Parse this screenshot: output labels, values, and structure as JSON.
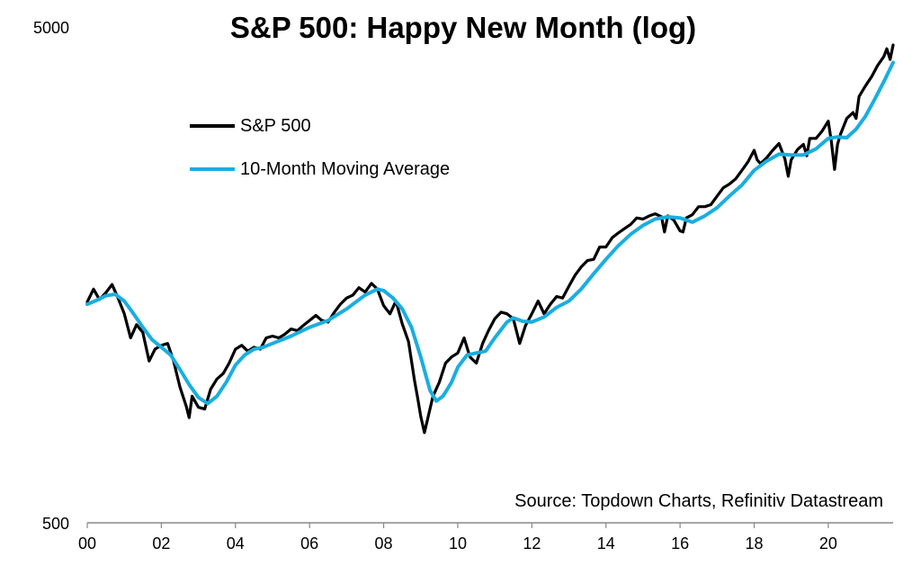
{
  "chart_data": {
    "type": "line",
    "title": "S&P 500: Happy New Month (log)",
    "source": "Source: Topdown Charts, Refinitiv Datastream",
    "xlabel": "",
    "ylabel": "",
    "yscale": "log",
    "ylim": [
      500,
      5000
    ],
    "xlim": [
      2000,
      2021.75
    ],
    "y_tick_labels": [
      {
        "value": 5000,
        "label": "5000"
      },
      {
        "value": 500,
        "label": "500"
      }
    ],
    "x_tick_labels": [
      {
        "value": 2000,
        "label": "00"
      },
      {
        "value": 2002,
        "label": "02"
      },
      {
        "value": 2004,
        "label": "04"
      },
      {
        "value": 2006,
        "label": "06"
      },
      {
        "value": 2008,
        "label": "08"
      },
      {
        "value": 2010,
        "label": "10"
      },
      {
        "value": 2012,
        "label": "12"
      },
      {
        "value": 2014,
        "label": "14"
      },
      {
        "value": 2016,
        "label": "16"
      },
      {
        "value": 2018,
        "label": "18"
      },
      {
        "value": 2020,
        "label": "20"
      }
    ],
    "legend_position": "top-left",
    "grid": false,
    "series": [
      {
        "name": "S&P 500",
        "color": "#000000",
        "points": [
          [
            2000.0,
            1394
          ],
          [
            2000.17,
            1480
          ],
          [
            2000.33,
            1410
          ],
          [
            2000.5,
            1455
          ],
          [
            2000.67,
            1512
          ],
          [
            2000.83,
            1420
          ],
          [
            2001.0,
            1320
          ],
          [
            2001.17,
            1180
          ],
          [
            2001.33,
            1255
          ],
          [
            2001.5,
            1210
          ],
          [
            2001.67,
            1060
          ],
          [
            2001.83,
            1120
          ],
          [
            2002.0,
            1140
          ],
          [
            2002.17,
            1150
          ],
          [
            2002.33,
            1060
          ],
          [
            2002.5,
            940
          ],
          [
            2002.67,
            860
          ],
          [
            2002.75,
            815
          ],
          [
            2002.83,
            900
          ],
          [
            2003.0,
            855
          ],
          [
            2003.17,
            848
          ],
          [
            2003.33,
            930
          ],
          [
            2003.5,
            975
          ],
          [
            2003.67,
            1000
          ],
          [
            2003.83,
            1050
          ],
          [
            2004.0,
            1120
          ],
          [
            2004.17,
            1140
          ],
          [
            2004.33,
            1110
          ],
          [
            2004.5,
            1130
          ],
          [
            2004.67,
            1120
          ],
          [
            2004.83,
            1180
          ],
          [
            2005.0,
            1190
          ],
          [
            2005.17,
            1180
          ],
          [
            2005.33,
            1200
          ],
          [
            2005.5,
            1230
          ],
          [
            2005.67,
            1220
          ],
          [
            2005.83,
            1250
          ],
          [
            2006.0,
            1280
          ],
          [
            2006.17,
            1310
          ],
          [
            2006.33,
            1280
          ],
          [
            2006.5,
            1270
          ],
          [
            2006.67,
            1330
          ],
          [
            2006.83,
            1380
          ],
          [
            2007.0,
            1420
          ],
          [
            2007.17,
            1440
          ],
          [
            2007.33,
            1490
          ],
          [
            2007.5,
            1460
          ],
          [
            2007.67,
            1520
          ],
          [
            2007.83,
            1480
          ],
          [
            2008.0,
            1370
          ],
          [
            2008.17,
            1320
          ],
          [
            2008.33,
            1400
          ],
          [
            2008.5,
            1260
          ],
          [
            2008.67,
            1160
          ],
          [
            2008.83,
            970
          ],
          [
            2008.92,
            890
          ],
          [
            2009.0,
            820
          ],
          [
            2009.1,
            760
          ],
          [
            2009.17,
            800
          ],
          [
            2009.33,
            900
          ],
          [
            2009.5,
            960
          ],
          [
            2009.67,
            1050
          ],
          [
            2009.83,
            1080
          ],
          [
            2010.0,
            1100
          ],
          [
            2010.17,
            1180
          ],
          [
            2010.33,
            1080
          ],
          [
            2010.5,
            1050
          ],
          [
            2010.67,
            1150
          ],
          [
            2010.83,
            1220
          ],
          [
            2011.0,
            1290
          ],
          [
            2011.17,
            1330
          ],
          [
            2011.33,
            1320
          ],
          [
            2011.5,
            1290
          ],
          [
            2011.67,
            1150
          ],
          [
            2011.83,
            1250
          ],
          [
            2012.0,
            1320
          ],
          [
            2012.17,
            1400
          ],
          [
            2012.33,
            1320
          ],
          [
            2012.5,
            1380
          ],
          [
            2012.67,
            1430
          ],
          [
            2012.83,
            1420
          ],
          [
            2013.0,
            1500
          ],
          [
            2013.17,
            1580
          ],
          [
            2013.33,
            1640
          ],
          [
            2013.5,
            1690
          ],
          [
            2013.67,
            1700
          ],
          [
            2013.83,
            1800
          ],
          [
            2014.0,
            1800
          ],
          [
            2014.17,
            1880
          ],
          [
            2014.33,
            1920
          ],
          [
            2014.5,
            1960
          ],
          [
            2014.67,
            2000
          ],
          [
            2014.83,
            2060
          ],
          [
            2015.0,
            2050
          ],
          [
            2015.17,
            2080
          ],
          [
            2015.33,
            2100
          ],
          [
            2015.5,
            2070
          ],
          [
            2015.58,
            1930
          ],
          [
            2015.67,
            2080
          ],
          [
            2015.83,
            2040
          ],
          [
            2016.0,
            1940
          ],
          [
            2016.08,
            1930
          ],
          [
            2016.17,
            2060
          ],
          [
            2016.33,
            2090
          ],
          [
            2016.5,
            2170
          ],
          [
            2016.67,
            2170
          ],
          [
            2016.83,
            2190
          ],
          [
            2017.0,
            2280
          ],
          [
            2017.17,
            2370
          ],
          [
            2017.33,
            2410
          ],
          [
            2017.5,
            2470
          ],
          [
            2017.67,
            2570
          ],
          [
            2017.83,
            2670
          ],
          [
            2018.0,
            2820
          ],
          [
            2018.08,
            2700
          ],
          [
            2018.17,
            2650
          ],
          [
            2018.33,
            2720
          ],
          [
            2018.5,
            2820
          ],
          [
            2018.67,
            2910
          ],
          [
            2018.83,
            2710
          ],
          [
            2018.92,
            2500
          ],
          [
            2019.0,
            2700
          ],
          [
            2019.17,
            2830
          ],
          [
            2019.33,
            2900
          ],
          [
            2019.42,
            2750
          ],
          [
            2019.5,
            2980
          ],
          [
            2019.67,
            2980
          ],
          [
            2019.83,
            3080
          ],
          [
            2020.0,
            3230
          ],
          [
            2020.08,
            2950
          ],
          [
            2020.17,
            2580
          ],
          [
            2020.25,
            2900
          ],
          [
            2020.33,
            3040
          ],
          [
            2020.5,
            3270
          ],
          [
            2020.67,
            3360
          ],
          [
            2020.75,
            3270
          ],
          [
            2020.83,
            3620
          ],
          [
            2021.0,
            3800
          ],
          [
            2021.17,
            3970
          ],
          [
            2021.33,
            4180
          ],
          [
            2021.5,
            4360
          ],
          [
            2021.58,
            4520
          ],
          [
            2021.67,
            4300
          ],
          [
            2021.75,
            4600
          ]
        ]
      },
      {
        "name": "10-Month Moving Average",
        "color": "#1aaee0",
        "points": [
          [
            2000.0,
            1380
          ],
          [
            2000.25,
            1405
          ],
          [
            2000.5,
            1435
          ],
          [
            2000.75,
            1445
          ],
          [
            2001.0,
            1400
          ],
          [
            2001.25,
            1320
          ],
          [
            2001.5,
            1240
          ],
          [
            2001.75,
            1170
          ],
          [
            2002.0,
            1130
          ],
          [
            2002.25,
            1090
          ],
          [
            2002.5,
            1020
          ],
          [
            2002.75,
            950
          ],
          [
            2003.0,
            895
          ],
          [
            2003.25,
            870
          ],
          [
            2003.5,
            900
          ],
          [
            2003.75,
            960
          ],
          [
            2004.0,
            1040
          ],
          [
            2004.25,
            1090
          ],
          [
            2004.5,
            1120
          ],
          [
            2004.75,
            1130
          ],
          [
            2005.0,
            1150
          ],
          [
            2005.5,
            1190
          ],
          [
            2006.0,
            1240
          ],
          [
            2006.5,
            1280
          ],
          [
            2007.0,
            1350
          ],
          [
            2007.5,
            1440
          ],
          [
            2007.83,
            1480
          ],
          [
            2008.0,
            1470
          ],
          [
            2008.25,
            1420
          ],
          [
            2008.5,
            1350
          ],
          [
            2008.75,
            1240
          ],
          [
            2009.0,
            1080
          ],
          [
            2009.25,
            925
          ],
          [
            2009.42,
            880
          ],
          [
            2009.6,
            900
          ],
          [
            2009.83,
            960
          ],
          [
            2010.0,
            1030
          ],
          [
            2010.25,
            1090
          ],
          [
            2010.5,
            1100
          ],
          [
            2010.75,
            1110
          ],
          [
            2011.0,
            1180
          ],
          [
            2011.33,
            1270
          ],
          [
            2011.5,
            1295
          ],
          [
            2011.75,
            1275
          ],
          [
            2012.0,
            1270
          ],
          [
            2012.33,
            1300
          ],
          [
            2012.67,
            1360
          ],
          [
            2013.0,
            1400
          ],
          [
            2013.33,
            1480
          ],
          [
            2013.67,
            1590
          ],
          [
            2014.0,
            1700
          ],
          [
            2014.33,
            1810
          ],
          [
            2014.67,
            1910
          ],
          [
            2015.0,
            1990
          ],
          [
            2015.33,
            2050
          ],
          [
            2015.67,
            2070
          ],
          [
            2016.0,
            2060
          ],
          [
            2016.33,
            2020
          ],
          [
            2016.67,
            2080
          ],
          [
            2017.0,
            2160
          ],
          [
            2017.33,
            2280
          ],
          [
            2017.67,
            2400
          ],
          [
            2018.0,
            2570
          ],
          [
            2018.33,
            2680
          ],
          [
            2018.67,
            2770
          ],
          [
            2019.0,
            2760
          ],
          [
            2019.33,
            2760
          ],
          [
            2019.67,
            2840
          ],
          [
            2020.0,
            2980
          ],
          [
            2020.25,
            3000
          ],
          [
            2020.5,
            2990
          ],
          [
            2020.75,
            3110
          ],
          [
            2021.0,
            3300
          ],
          [
            2021.25,
            3570
          ],
          [
            2021.5,
            3880
          ],
          [
            2021.75,
            4240
          ]
        ]
      }
    ]
  }
}
